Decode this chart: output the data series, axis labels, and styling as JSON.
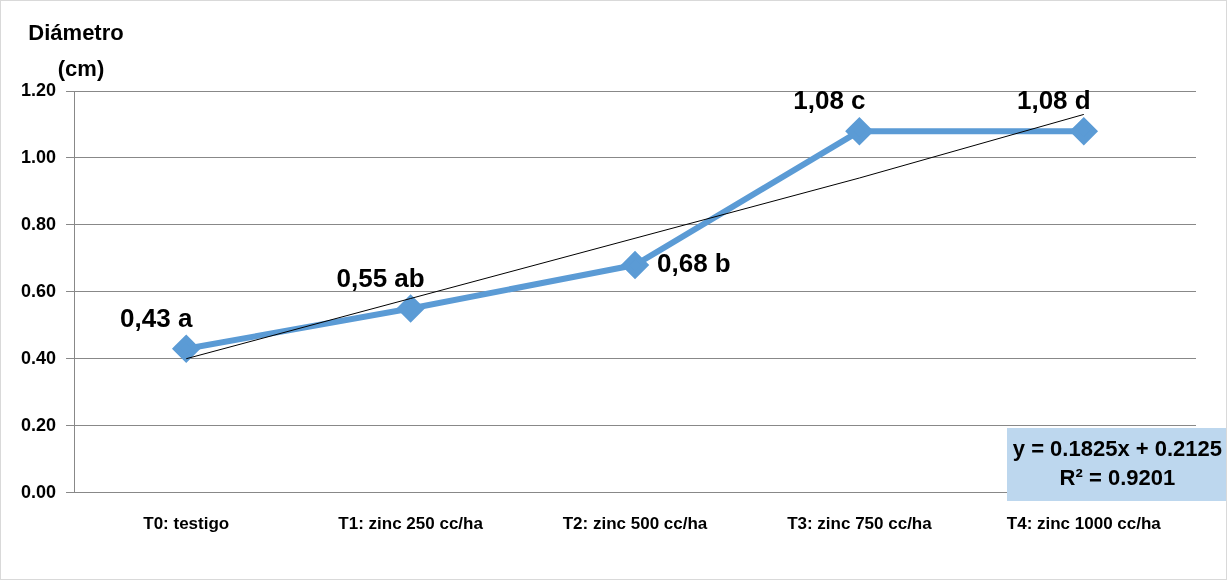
{
  "chart_data": {
    "type": "line",
    "ylabel": "Diámetro (cm)",
    "categories": [
      "T0: testigo",
      "T1: zinc 250 cc/ha",
      "T2: zinc 500 cc/ha",
      "T3: zinc 750 cc/ha",
      "T4: zinc 1000 cc/ha"
    ],
    "series": [
      {
        "color": "#5b9bd5",
        "values": [
          0.43,
          0.55,
          0.68,
          1.08,
          1.08
        ],
        "value_labels": [
          "0,43 a",
          "0,55 ab",
          "0,68 b",
          "1,08 c",
          "1,08 d"
        ],
        "marker": "diamond"
      },
      {
        "type": "line",
        "color": "#000000",
        "values": [
          0.4,
          0.58,
          0.76,
          0.94,
          1.13
        ],
        "marker": "none"
      }
    ],
    "ylim": [
      0,
      1.2
    ],
    "yticks": [
      {
        "value": 0,
        "label": "0.00"
      },
      {
        "value": 0.2,
        "label": "0.20"
      },
      {
        "value": 0.4,
        "label": "0.40"
      },
      {
        "value": 0.6,
        "label": "0.60"
      },
      {
        "value": 0.8,
        "label": "0.80"
      },
      {
        "value": 1,
        "label": "1.00"
      },
      {
        "value": 1.2,
        "label": "1.20"
      }
    ],
    "grid": "y",
    "legend": false,
    "annotations": [
      "y = 0.1825x + 0.2125",
      "R² = 0.9201"
    ]
  }
}
